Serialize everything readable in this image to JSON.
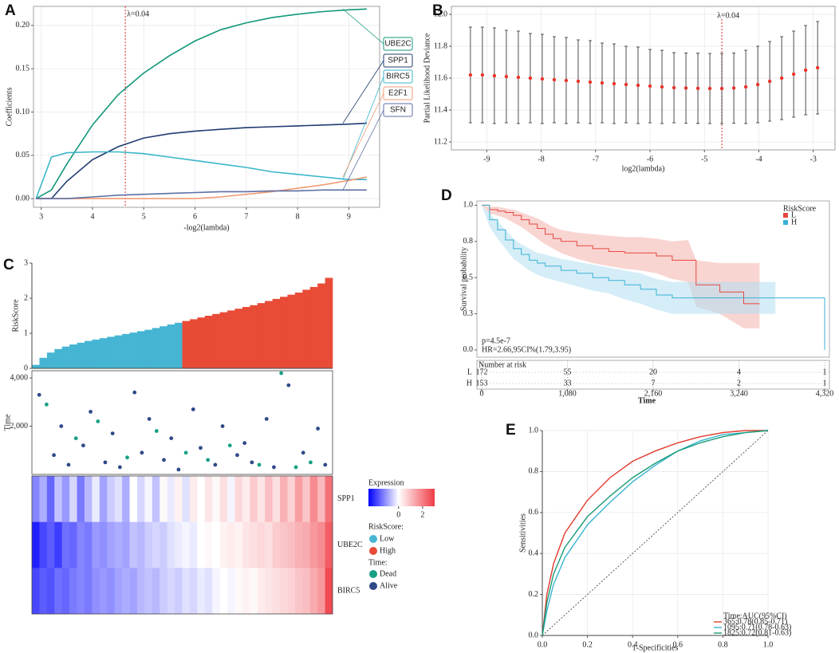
{
  "chart_data": [
    {
      "type": "paths",
      "label": "A",
      "xlabel": "-log2(lambda)",
      "ylabel": "Coefficients",
      "x": [
        2.9,
        3.2,
        3.5,
        4,
        4.5,
        5,
        5.5,
        6,
        6.5,
        7,
        7.5,
        8,
        8.5,
        9,
        9.35
      ],
      "series": [
        {
          "name": "UBE2C",
          "color": "#12977a",
          "values": [
            0,
            0.01,
            0.04,
            0.085,
            0.12,
            0.145,
            0.165,
            0.182,
            0.195,
            0.203,
            0.209,
            0.213,
            0.216,
            0.218,
            0.219
          ]
        },
        {
          "name": "SPP1",
          "color": "#1f3b70",
          "values": [
            0,
            0,
            0.02,
            0.045,
            0.06,
            0.07,
            0.075,
            0.078,
            0.08,
            0.082,
            0.083,
            0.084,
            0.085,
            0.086,
            0.087
          ]
        },
        {
          "name": "BIRC5",
          "color": "#38b6c9",
          "values": [
            0,
            0.048,
            0.053,
            0.054,
            0.054,
            0.052,
            0.048,
            0.044,
            0.04,
            0.036,
            0.031,
            0.028,
            0.025,
            0.022,
            0.022
          ]
        },
        {
          "name": "E2F1",
          "color": "#f29b76",
          "values": [
            0,
            0,
            0,
            0,
            0,
            0,
            0,
            0,
            0.002,
            0.005,
            0.008,
            0.012,
            0.016,
            0.021,
            0.025
          ]
        },
        {
          "name": "SFN",
          "color": "#5d6fa3",
          "values": [
            0,
            0,
            0,
            0.002,
            0.004,
            0.005,
            0.006,
            0.007,
            0.008,
            0.008,
            0.009,
            0.009,
            0.01,
            0.01,
            0.01
          ]
        }
      ],
      "vline": {
        "value": 4.64,
        "label": "λ=0.04"
      },
      "xlim": [
        2.85,
        9.6
      ],
      "xticks": [
        3,
        4,
        5,
        6,
        7,
        8,
        9
      ],
      "ylim": [
        -0.01,
        0.222
      ],
      "yticks": [
        {
          "value": 0,
          "label": "0.00"
        },
        0.05,
        {
          "value": 0.1,
          "label": "0.10"
        },
        0.15,
        {
          "value": 0.2,
          "label": "0.20"
        }
      ],
      "grid": true
    },
    {
      "type": "errorbar",
      "label": "B",
      "xlabel": "log2(lambda)",
      "ylabel": "Partial Likelihood Deviance",
      "color": "#e8332a",
      "x": [
        -9.3,
        -9.08,
        -8.86,
        -8.64,
        -8.42,
        -8.2,
        -7.98,
        -7.76,
        -7.54,
        -7.32,
        -7.1,
        -6.88,
        -6.66,
        -6.44,
        -6.22,
        -6,
        -5.78,
        -5.56,
        -5.34,
        -5.12,
        -4.9,
        -4.68,
        -4.46,
        -4.24,
        -4.02,
        -3.8,
        -3.58,
        -3.36,
        -3.14,
        -2.92
      ],
      "values": [
        11.62,
        11.62,
        11.615,
        11.61,
        11.605,
        11.6,
        11.595,
        11.59,
        11.585,
        11.58,
        11.575,
        11.57,
        11.565,
        11.56,
        11.555,
        11.55,
        11.545,
        11.54,
        11.538,
        11.536,
        11.535,
        11.535,
        11.538,
        11.545,
        11.56,
        11.58,
        11.6,
        11.625,
        11.65,
        11.665
      ],
      "errors": [
        0.3,
        0.3,
        0.3,
        0.29,
        0.29,
        0.28,
        0.28,
        0.27,
        0.27,
        0.26,
        0.26,
        0.25,
        0.25,
        0.24,
        0.24,
        0.23,
        0.23,
        0.22,
        0.22,
        0.22,
        0.22,
        0.22,
        0.22,
        0.23,
        0.24,
        0.25,
        0.26,
        0.27,
        0.28,
        0.29
      ],
      "vline": {
        "value": -4.68,
        "label": "λ=0.04"
      },
      "xlim": [
        -9.65,
        -2.6
      ],
      "xticks": [
        -9,
        -8,
        -7,
        -6,
        -5,
        -4,
        -3
      ],
      "ylim": [
        11.15,
        12.05
      ],
      "yticks": [
        11.2,
        11.4,
        11.6,
        11.8,
        {
          "value": 12,
          "label": "12.0"
        }
      ],
      "grid": true
    },
    {
      "type": "bar",
      "label": "C",
      "ylabel": "RiskScore",
      "legend_title": "RiskScore:",
      "series": [
        {
          "name": "Low",
          "color": "#45b5d3",
          "values": [
            0.1,
            0.3,
            0.45,
            0.55,
            0.62,
            0.68,
            0.73,
            0.78,
            0.82,
            0.86,
            0.9,
            0.94,
            0.98,
            1.02,
            1.06,
            1.1,
            1.15,
            1.2,
            1.25,
            1.3,
            null,
            null,
            null,
            null,
            null,
            null,
            null,
            null,
            null,
            null,
            null,
            null,
            null,
            null,
            null,
            null,
            null,
            null,
            null,
            null
          ]
        },
        {
          "name": "High",
          "color": "#e84b36",
          "values": [
            null,
            null,
            null,
            null,
            null,
            null,
            null,
            null,
            null,
            null,
            null,
            null,
            null,
            null,
            null,
            null,
            null,
            null,
            null,
            null,
            1.35,
            1.4,
            1.45,
            1.5,
            1.55,
            1.6,
            1.65,
            1.7,
            1.75,
            1.8,
            1.86,
            1.92,
            1.98,
            2.04,
            2.1,
            2.16,
            2.24,
            2.32,
            2.42,
            2.58
          ]
        }
      ],
      "ylim": [
        0,
        3
      ],
      "yticks": [
        0,
        1,
        2,
        3
      ]
    },
    {
      "type": "scatter",
      "ylabel": "Time",
      "legend_title": "Time:",
      "series": [
        {
          "name": "Dead",
          "color": "#17a085",
          "x": [
            2,
            6,
            9,
            13,
            17,
            21,
            24,
            27,
            31,
            34,
            36,
            38
          ],
          "values": [
            2900,
            1500,
            2200,
            700,
            1800,
            900,
            600,
            1200,
            400,
            4200,
            300,
            500
          ]
        },
        {
          "name": "Alive",
          "color": "#2f4a87",
          "x": [
            1,
            3,
            4,
            5,
            7,
            8,
            10,
            11,
            12,
            14,
            15,
            16,
            18,
            19,
            20,
            22,
            23,
            25,
            26,
            28,
            29,
            30,
            32,
            33,
            35,
            37,
            39,
            40
          ],
          "values": [
            3300,
            800,
            2000,
            400,
            1200,
            2600,
            500,
            1700,
            300,
            3400,
            900,
            2300,
            600,
            1500,
            200,
            2700,
            1100,
            400,
            2000,
            800,
            1300,
            500,
            2300,
            300,
            3700,
            900,
            1900,
            400
          ]
        }
      ],
      "xlim": [
        0,
        41
      ],
      "ylim": [
        0,
        4300
      ],
      "yticks": [
        {
          "value": 2000,
          "label": "2,000"
        },
        {
          "value": 4000,
          "label": "4,000"
        }
      ]
    },
    {
      "type": "heatmap",
      "colorbar_title": "Expression",
      "rows": [
        "SPP1",
        "UBE2C",
        "BIRC5"
      ],
      "values": [
        [
          -1.2,
          -0.8,
          -1.5,
          -0.6,
          -1.0,
          -0.4,
          -1.3,
          -0.7,
          -0.2,
          -0.9,
          -0.5,
          -0.3,
          -0.8,
          0.0,
          -0.4,
          -0.1,
          -0.6,
          0.1,
          -0.2,
          0.2,
          -0.3,
          0.3,
          0.0,
          0.4,
          0.1,
          0.5,
          -0.1,
          0.6,
          0.3,
          0.8,
          0.4,
          1.0,
          0.5,
          1.2,
          0.7,
          1.5,
          0.9,
          1.8,
          1.1,
          2.2
        ],
        [
          -2.2,
          -1.8,
          -1.6,
          -1.9,
          -1.4,
          -1.5,
          -1.2,
          -1.3,
          -1.0,
          -1.1,
          -0.9,
          -0.8,
          -0.9,
          -0.6,
          -0.7,
          -0.5,
          -0.4,
          -0.5,
          -0.3,
          -0.2,
          -0.1,
          -0.2,
          0.0,
          0.1,
          0.0,
          0.2,
          0.3,
          0.2,
          0.4,
          0.5,
          0.6,
          0.5,
          0.8,
          0.9,
          1.0,
          1.2,
          1.3,
          1.6,
          1.8,
          2.5
        ],
        [
          -1.8,
          -1.6,
          -1.7,
          -1.4,
          -1.5,
          -1.3,
          -1.2,
          -1.3,
          -1.1,
          -1.0,
          -1.1,
          -0.9,
          -0.8,
          -0.9,
          -0.7,
          -0.6,
          -0.7,
          -0.5,
          -0.4,
          -0.5,
          -0.3,
          -0.4,
          -0.2,
          -0.3,
          -0.1,
          0.0,
          -0.1,
          0.1,
          0.2,
          0.1,
          0.3,
          0.4,
          0.5,
          0.6,
          0.7,
          0.9,
          1.0,
          1.3,
          1.6,
          2.8
        ]
      ],
      "clim": [
        -2.5,
        3
      ],
      "colorbar_ticks": [
        0,
        2
      ]
    },
    {
      "type": "survival",
      "label": "D",
      "xlabel": "Time",
      "ylabel": "Survival probability",
      "legend_title": "RiskScore",
      "annotations": [
        "p=4.5e-7",
        "HR=2.66,95CI%(1.79,3.95)"
      ],
      "risk_title": "Number at risk",
      "series": [
        {
          "name": "L",
          "color": "#e8473f",
          "band_color": "#f4b2ad",
          "x": [
            0,
            100,
            200,
            300,
            400,
            500,
            600,
            700,
            800,
            900,
            1000,
            1200,
            1400,
            1600,
            1800,
            2000,
            2200,
            2400,
            2600,
            2700,
            3000,
            3300,
            3500
          ],
          "values": [
            1,
            0.97,
            0.96,
            0.95,
            0.93,
            0.9,
            0.87,
            0.84,
            0.8,
            0.77,
            0.75,
            0.72,
            0.7,
            0.68,
            0.67,
            0.67,
            0.65,
            0.62,
            0.62,
            0.45,
            0.4,
            0.32,
            0.32
          ],
          "lower": [
            1,
            0.94,
            0.93,
            0.91,
            0.88,
            0.85,
            0.81,
            0.77,
            0.73,
            0.7,
            0.67,
            0.63,
            0.6,
            0.58,
            0.56,
            0.55,
            0.53,
            0.49,
            0.47,
            0.3,
            0.25,
            0.15,
            0.15
          ],
          "upper": [
            1,
            0.99,
            0.99,
            0.98,
            0.97,
            0.95,
            0.93,
            0.91,
            0.88,
            0.85,
            0.83,
            0.81,
            0.8,
            0.79,
            0.78,
            0.78,
            0.77,
            0.75,
            0.76,
            0.62,
            0.6,
            0.6,
            0.6
          ],
          "at_risk": [
            172,
            55,
            20,
            4,
            1
          ]
        },
        {
          "name": "H",
          "color": "#39b3d6",
          "band_color": "#b3dff0",
          "x": [
            0,
            100,
            200,
            300,
            400,
            500,
            600,
            700,
            800,
            1000,
            1200,
            1400,
            1600,
            1800,
            2000,
            2200,
            2400,
            2600,
            3000,
            3300,
            3700,
            4320
          ],
          "values": [
            1,
            0.9,
            0.83,
            0.76,
            0.7,
            0.66,
            0.62,
            0.6,
            0.58,
            0.55,
            0.53,
            0.5,
            0.48,
            0.45,
            0.42,
            0.38,
            0.36,
            0.36,
            0.36,
            0.36,
            0.36,
            0
          ],
          "lower": [
            1,
            0.85,
            0.77,
            0.7,
            0.63,
            0.59,
            0.55,
            0.52,
            0.5,
            0.47,
            0.44,
            0.41,
            0.39,
            0.35,
            0.32,
            0.28,
            0.25,
            0.25,
            0.25,
            0.25,
            0.25,
            null
          ],
          "upper": [
            1,
            0.94,
            0.89,
            0.83,
            0.77,
            0.73,
            0.7,
            0.67,
            0.66,
            0.63,
            0.61,
            0.59,
            0.57,
            0.55,
            0.53,
            0.49,
            0.47,
            0.47,
            0.47,
            0.47,
            0.47,
            null
          ],
          "at_risk": [
            153,
            33,
            7,
            2,
            1
          ]
        }
      ],
      "xlim": [
        -60,
        4380
      ],
      "xticks": [
        0,
        {
          "value": 1080,
          "label": "1,080"
        },
        {
          "value": 2160,
          "label": "2,160"
        },
        {
          "value": 3240,
          "label": "3,240"
        },
        {
          "value": 4320,
          "label": "4,320"
        }
      ],
      "ylim": [
        -0.05,
        1.03
      ],
      "yticks": [
        {
          "value": 0,
          "label": "0.0"
        },
        {
          "value": 0.25,
          "label": "0.3"
        },
        0.5,
        {
          "value": 0.75,
          "label": "0.8"
        },
        {
          "value": 1,
          "label": "1.0"
        }
      ]
    },
    {
      "type": "roc",
      "label": "E",
      "xlabel": "1-Specificities",
      "ylabel": "Sensitivities",
      "legend_title": "Time:AUC(95%CI)",
      "x": [
        0,
        0.02,
        0.05,
        0.1,
        0.2,
        0.3,
        0.4,
        0.5,
        0.6,
        0.7,
        0.8,
        0.9,
        1
      ],
      "series": [
        {
          "name": "365:0.78(0.85-0.71)",
          "color": "#e23b2e",
          "values": [
            0,
            0.2,
            0.35,
            0.5,
            0.66,
            0.77,
            0.85,
            0.9,
            0.94,
            0.97,
            0.99,
            1,
            1
          ]
        },
        {
          "name": "1095:0.71(0.78-0.63)",
          "color": "#3ab5d0",
          "values": [
            0,
            0.12,
            0.25,
            0.38,
            0.54,
            0.65,
            0.75,
            0.83,
            0.9,
            0.95,
            0.98,
            0.99,
            1
          ]
        },
        {
          "name": "1825:0.72(0.81-0.63)",
          "color": "#1b9a78",
          "values": [
            0,
            0.16,
            0.3,
            0.43,
            0.58,
            0.68,
            0.77,
            0.84,
            0.9,
            0.94,
            0.97,
            0.99,
            1
          ]
        }
      ],
      "xlim": [
        0,
        1
      ],
      "xticks": [
        {
          "value": 0,
          "label": "0.0"
        },
        0.2,
        0.4,
        0.6,
        0.8,
        {
          "value": 1,
          "label": "1.0"
        }
      ],
      "ylim": [
        0,
        1
      ],
      "yticks": [
        {
          "value": 0,
          "label": "0.0"
        },
        0.2,
        0.4,
        0.6,
        0.8,
        {
          "value": 1,
          "label": "1.0"
        }
      ],
      "grid": true
    }
  ]
}
